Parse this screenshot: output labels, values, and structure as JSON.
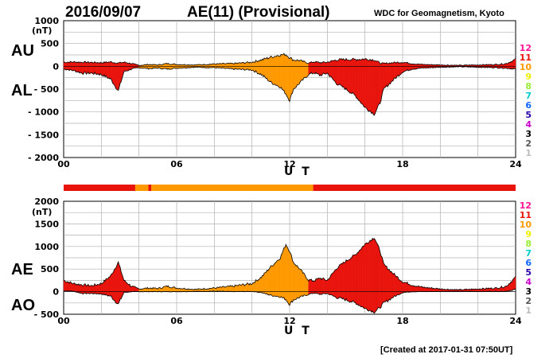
{
  "header": {
    "date": "2016/09/07",
    "title": "AE(11) (Provisional)",
    "source": "WDC for Geomagnetism, Kyoto",
    "created": "[Created at 2017-01-31 07:50UT]"
  },
  "legend": {
    "hours": [
      "12",
      "11",
      "10",
      "9",
      "8",
      "7",
      "6",
      "5",
      "4",
      "3",
      "2",
      "1"
    ],
    "colors": [
      "#ff1493",
      "#e8140c",
      "#ff9900",
      "#eeee00",
      "#99ee33",
      "#00cccc",
      "#1166ff",
      "#2a00aa",
      "#cc00cc",
      "#000000",
      "#555555",
      "#bbbbbb"
    ]
  },
  "chart_data": [
    {
      "type": "area",
      "panel": "top",
      "labels": {
        "upper": "AU",
        "lower": "AL"
      },
      "unit": "(nT)",
      "xlabel": "U T",
      "xticks": [
        "00",
        "06",
        "12",
        "18",
        "24"
      ],
      "yticks": [
        "1000",
        "500",
        "0",
        "- 500",
        "- 1000",
        "- 1500",
        "- 2000"
      ],
      "ylim": [
        -2000,
        1000
      ],
      "xlim": [
        0,
        24
      ],
      "grid": true,
      "x_hours": [
        0,
        0.5,
        1,
        1.5,
        2,
        2.5,
        2.9,
        3.2,
        3.6,
        4,
        4.5,
        5,
        5.5,
        6,
        7,
        8,
        9,
        10,
        10.5,
        11,
        11.5,
        11.8,
        12,
        12.2,
        12.5,
        13,
        13.3,
        13.6,
        14,
        14.5,
        15,
        15.5,
        16,
        16.5,
        16.8,
        17,
        17.5,
        18,
        18.5,
        19,
        20,
        21,
        22,
        23,
        23.5,
        24
      ],
      "series": [
        {
          "name": "AU",
          "values": [
            90,
            95,
            90,
            85,
            80,
            95,
            70,
            90,
            60,
            20,
            40,
            30,
            60,
            40,
            30,
            50,
            60,
            90,
            140,
            200,
            250,
            260,
            190,
            140,
            130,
            70,
            100,
            80,
            90,
            140,
            150,
            150,
            160,
            140,
            70,
            60,
            80,
            90,
            60,
            40,
            30,
            20,
            30,
            40,
            60,
            150
          ]
        },
        {
          "name": "AL",
          "values": [
            -60,
            -90,
            -150,
            -150,
            -180,
            -280,
            -540,
            -120,
            -60,
            -30,
            -50,
            -40,
            -60,
            -40,
            -20,
            -30,
            -60,
            -80,
            -180,
            -350,
            -450,
            -600,
            -750,
            -500,
            -380,
            -180,
            -140,
            -200,
            -150,
            -380,
            -500,
            -650,
            -900,
            -1050,
            -800,
            -500,
            -300,
            -120,
            -60,
            -40,
            -20,
            -10,
            -20,
            -30,
            -40,
            -60
          ]
        }
      ]
    },
    {
      "type": "area",
      "panel": "bottom",
      "labels": {
        "upper": "AE",
        "lower": "AO"
      },
      "unit": "(nT)",
      "xlabel": "U T",
      "xticks": [
        "00",
        "06",
        "12",
        "18",
        "24"
      ],
      "yticks": [
        "2000",
        "1500",
        "1000",
        "500",
        "0",
        "- 500"
      ],
      "ylim": [
        -500,
        2000
      ],
      "xlim": [
        0,
        24
      ],
      "grid": true,
      "x_hours": [
        0,
        0.5,
        1,
        1.5,
        2,
        2.5,
        2.9,
        3.2,
        3.6,
        4,
        4.5,
        5,
        5.5,
        6,
        7,
        8,
        9,
        10,
        10.5,
        11,
        11.5,
        11.8,
        12,
        12.2,
        12.5,
        13,
        13.3,
        13.6,
        14,
        14.5,
        15,
        15.5,
        16,
        16.5,
        16.8,
        17,
        17.5,
        18,
        18.5,
        19,
        20,
        21,
        22,
        23,
        23.5,
        24
      ],
      "series": [
        {
          "name": "AE",
          "values": [
            250,
            180,
            150,
            130,
            180,
            350,
            650,
            250,
            120,
            60,
            80,
            70,
            120,
            80,
            50,
            80,
            120,
            180,
            320,
            550,
            750,
            1050,
            900,
            650,
            520,
            260,
            240,
            300,
            250,
            520,
            680,
            820,
            1050,
            1200,
            900,
            600,
            400,
            220,
            150,
            100,
            60,
            40,
            60,
            80,
            120,
            320
          ]
        },
        {
          "name": "AO",
          "values": [
            20,
            10,
            -40,
            -40,
            -50,
            -100,
            -280,
            -20,
            0,
            0,
            0,
            0,
            0,
            0,
            5,
            10,
            0,
            5,
            -20,
            -80,
            -110,
            -170,
            -280,
            -180,
            -130,
            -60,
            -30,
            -60,
            -40,
            -130,
            -180,
            -250,
            -370,
            -450,
            -350,
            -250,
            -120,
            -20,
            0,
            0,
            5,
            5,
            5,
            5,
            10,
            50
          ]
        }
      ]
    }
  ],
  "status_bar": {
    "segments": [
      {
        "from": 0,
        "to": 3.8,
        "level": "11"
      },
      {
        "from": 3.8,
        "to": 4.5,
        "level": "10"
      },
      {
        "from": 4.5,
        "to": 4.65,
        "level": "11"
      },
      {
        "from": 4.65,
        "to": 13.25,
        "level": "10"
      },
      {
        "from": 13.25,
        "to": 24,
        "level": "11"
      }
    ]
  },
  "hour_levels": [
    "11",
    "11",
    "11",
    "11",
    "10",
    "10",
    "10",
    "10",
    "10",
    "10",
    "10",
    "10",
    "10",
    "11",
    "11",
    "11",
    "11",
    "11",
    "11",
    "11",
    "11",
    "11",
    "11",
    "11"
  ]
}
